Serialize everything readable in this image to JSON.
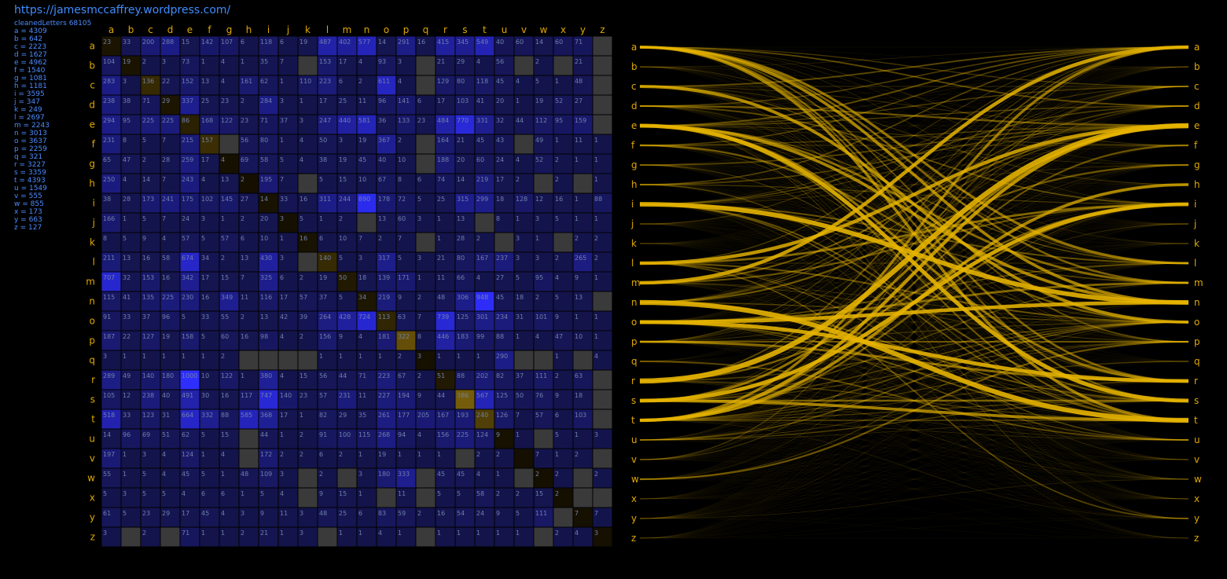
{
  "url": "https://jamesmccaffrey.wordpress.com/",
  "stats": {
    "title": "cleanedLetters 68105",
    "letters": [
      "a = 4309",
      "b = 642",
      "c = 2223",
      "d = 1627",
      "e = 4962",
      "f = 1540",
      "g = 1081",
      "h = 1181",
      "i = 3595",
      "j = 347",
      "k = 249",
      "l = 2697",
      "m = 2243",
      "n = 3013",
      "o = 3637",
      "p = 2259",
      "q = 321",
      "r = 3227",
      "s = 3359",
      "t = 4393",
      "u = 1549",
      "v = 555",
      "w = 855",
      "x = 173",
      "y = 663",
      "z = 127"
    ]
  },
  "colors": {
    "matrix_low": "#141450",
    "matrix_high": "#2e2eff",
    "diagonal": "#3a2a08",
    "zero": "#3a3a3a",
    "label": "#e0a800",
    "flow": "#e6b400",
    "stats": "#4c8bff"
  },
  "chart_data": [
    {
      "type": "heatmap",
      "title": "",
      "rows": [
        "a",
        "b",
        "c",
        "d",
        "e",
        "f",
        "g",
        "h",
        "i",
        "j",
        "k",
        "l",
        "m",
        "n",
        "o",
        "p",
        "q",
        "r",
        "s",
        "t",
        "u",
        "v",
        "w",
        "x",
        "y",
        "z"
      ],
      "columns": [
        "a",
        "b",
        "c",
        "d",
        "e",
        "f",
        "g",
        "h",
        "i",
        "j",
        "k",
        "l",
        "m",
        "n",
        "o",
        "p",
        "q",
        "r",
        "s",
        "t",
        "u",
        "v",
        "w",
        "x",
        "y",
        "z"
      ],
      "values": [
        [
          23,
          33,
          200,
          288,
          15,
          142,
          107,
          6,
          118,
          6,
          19,
          487,
          402,
          577,
          14,
          291,
          16,
          415,
          345,
          549,
          40,
          60,
          14,
          60,
          71,
          0
        ],
        [
          104,
          19,
          2,
          3,
          73,
          1,
          4,
          1,
          35,
          7,
          0,
          153,
          17,
          4,
          93,
          3,
          0,
          21,
          29,
          4,
          56,
          0,
          2,
          0,
          21,
          0
        ],
        [
          283,
          3,
          136,
          22,
          152,
          13,
          4,
          161,
          62,
          1,
          110,
          223,
          6,
          2,
          611,
          4,
          0,
          129,
          80,
          118,
          45,
          4,
          5,
          1,
          48,
          0
        ],
        [
          238,
          38,
          71,
          29,
          337,
          25,
          23,
          2,
          284,
          3,
          1,
          17,
          25,
          11,
          96,
          141,
          6,
          17,
          103,
          41,
          20,
          1,
          19,
          52,
          27,
          0
        ],
        [
          294,
          95,
          225,
          225,
          86,
          168,
          122,
          23,
          71,
          37,
          3,
          247,
          440,
          581,
          36,
          133,
          23,
          484,
          770,
          331,
          32,
          44,
          112,
          95,
          159,
          0
        ],
        [
          231,
          8,
          5,
          7,
          215,
          157,
          0,
          56,
          80,
          1,
          4,
          50,
          3,
          19,
          367,
          2,
          0,
          164,
          21,
          45,
          43,
          0,
          49,
          1,
          11,
          1
        ],
        [
          65,
          47,
          2,
          28,
          259,
          17,
          4,
          69,
          58,
          5,
          4,
          38,
          19,
          45,
          40,
          10,
          0,
          188,
          20,
          60,
          24,
          4,
          52,
          2,
          1,
          1
        ],
        [
          250,
          4,
          14,
          7,
          243,
          4,
          13,
          2,
          195,
          7,
          0,
          5,
          15,
          10,
          67,
          8,
          6,
          74,
          14,
          219,
          17,
          2,
          0,
          2,
          0,
          1
        ],
        [
          38,
          28,
          173,
          241,
          175,
          102,
          145,
          27,
          14,
          33,
          16,
          311,
          244,
          890,
          178,
          72,
          5,
          25,
          315,
          299,
          18,
          128,
          12,
          16,
          1,
          88
        ],
        [
          166,
          1,
          5,
          7,
          24,
          3,
          1,
          2,
          20,
          3,
          5,
          1,
          2,
          0,
          13,
          60,
          3,
          1,
          13,
          0,
          8,
          1,
          3,
          5,
          1,
          1
        ],
        [
          8,
          5,
          9,
          4,
          57,
          5,
          57,
          6,
          10,
          1,
          16,
          6,
          10,
          7,
          2,
          7,
          0,
          1,
          28,
          2,
          0,
          3,
          1,
          0,
          2,
          2
        ],
        [
          211,
          13,
          16,
          58,
          674,
          34,
          2,
          13,
          430,
          3,
          0,
          140,
          5,
          3,
          317,
          5,
          3,
          21,
          80,
          167,
          237,
          3,
          3,
          2,
          265,
          2
        ],
        [
          707,
          32,
          153,
          16,
          342,
          17,
          15,
          7,
          325,
          6,
          2,
          19,
          50,
          18,
          139,
          171,
          1,
          11,
          66,
          4,
          27,
          5,
          95,
          4,
          9,
          1
        ],
        [
          115,
          41,
          135,
          225,
          230,
          16,
          349,
          11,
          116,
          17,
          57,
          37,
          5,
          34,
          219,
          9,
          2,
          48,
          306,
          948,
          45,
          18,
          2,
          5,
          13,
          0
        ],
        [
          91,
          33,
          37,
          96,
          5,
          33,
          55,
          2,
          13,
          42,
          39,
          264,
          428,
          724,
          113,
          63,
          7,
          739,
          125,
          301,
          234,
          31,
          101,
          9,
          1,
          1
        ],
        [
          187,
          22,
          127,
          19,
          158,
          5,
          60,
          16,
          98,
          4,
          2,
          156,
          9,
          4,
          181,
          322,
          8,
          446,
          183,
          99,
          88,
          1,
          4,
          47,
          10,
          1
        ],
        [
          3,
          1,
          1,
          1,
          1,
          1,
          2,
          0,
          0,
          0,
          0,
          1,
          1,
          1,
          1,
          2,
          3,
          1,
          1,
          1,
          290,
          0,
          0,
          1,
          0,
          4
        ],
        [
          289,
          49,
          140,
          180,
          1000,
          10,
          122,
          1,
          380,
          4,
          15,
          56,
          44,
          71,
          223,
          67,
          2,
          51,
          88,
          202,
          82,
          37,
          111,
          2,
          63,
          0
        ],
        [
          105,
          12,
          238,
          40,
          491,
          30,
          16,
          117,
          747,
          140,
          23,
          57,
          231,
          11,
          227,
          194,
          9,
          44,
          386,
          567,
          125,
          50,
          76,
          9,
          18,
          0
        ],
        [
          518,
          33,
          123,
          31,
          664,
          332,
          88,
          585,
          368,
          17,
          1,
          82,
          29,
          35,
          261,
          177,
          205,
          167,
          193,
          240,
          126,
          7,
          57,
          6,
          103,
          0
        ],
        [
          14,
          96,
          69,
          51,
          62,
          5,
          15,
          0,
          44,
          1,
          2,
          91,
          100,
          115,
          268,
          94,
          4,
          156,
          225,
          124,
          9,
          1,
          0,
          5,
          1,
          3
        ],
        [
          197,
          1,
          3,
          4,
          124,
          1,
          4,
          0,
          172,
          2,
          2,
          6,
          2,
          1,
          19,
          1,
          1,
          1,
          0,
          2,
          2,
          0,
          7,
          1,
          2,
          0
        ],
        [
          55,
          1,
          5,
          4,
          45,
          5,
          1,
          48,
          109,
          3,
          0,
          2,
          0,
          3,
          180,
          333,
          0,
          45,
          45,
          4,
          1,
          0,
          2,
          2,
          0,
          2
        ],
        [
          5,
          3,
          5,
          5,
          4,
          6,
          6,
          1,
          5,
          4,
          0,
          9,
          15,
          1,
          0,
          11,
          0,
          5,
          5,
          58,
          2,
          2,
          15,
          2,
          0,
          0
        ],
        [
          61,
          5,
          23,
          29,
          17,
          45,
          4,
          3,
          9,
          11,
          3,
          48,
          25,
          6,
          83,
          59,
          2,
          16,
          54,
          24,
          9,
          5,
          111,
          0,
          7,
          7
        ],
        [
          3,
          0,
          2,
          0,
          71,
          1,
          1,
          2,
          21,
          1,
          3,
          0,
          1,
          1,
          4,
          1,
          0,
          1,
          1,
          1,
          1,
          1,
          0,
          2,
          4,
          3
        ]
      ]
    },
    {
      "type": "flow",
      "title": "",
      "left_labels": [
        "a",
        "b",
        "c",
        "d",
        "e",
        "f",
        "g",
        "h",
        "i",
        "j",
        "k",
        "l",
        "m",
        "n",
        "o",
        "p",
        "q",
        "r",
        "s",
        "t",
        "u",
        "v",
        "w",
        "x",
        "y",
        "z"
      ],
      "right_labels": [
        "a",
        "b",
        "c",
        "d",
        "e",
        "f",
        "g",
        "h",
        "i",
        "j",
        "k",
        "l",
        "m",
        "n",
        "o",
        "p",
        "q",
        "r",
        "s",
        "t",
        "u",
        "v",
        "w",
        "x",
        "y",
        "z"
      ]
    }
  ]
}
